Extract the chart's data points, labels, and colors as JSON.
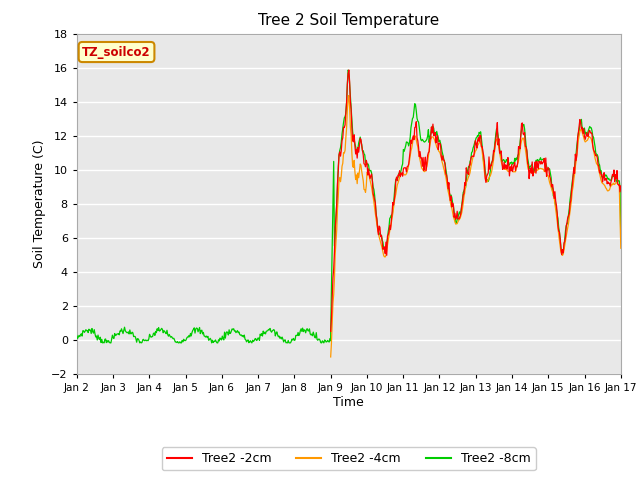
{
  "title": "Tree 2 Soil Temperature",
  "xlabel": "Time",
  "ylabel": "Soil Temperature (C)",
  "ylim": [
    -2,
    18
  ],
  "yticks": [
    -2,
    0,
    2,
    4,
    6,
    8,
    10,
    12,
    14,
    16,
    18
  ],
  "annotation_text": "TZ_soilco2",
  "annotation_color": "#cc0000",
  "annotation_bg": "#ffffcc",
  "annotation_border": "#cc8800",
  "colors": {
    "2cm": "#ff0000",
    "4cm": "#ff9900",
    "8cm": "#00cc00"
  },
  "legend_labels": [
    "Tree2 -2cm",
    "Tree2 -4cm",
    "Tree2 -8cm"
  ],
  "bg_color": "#e8e8e8",
  "grid_color": "#ffffff",
  "figsize": [
    6.4,
    4.8
  ],
  "dpi": 100
}
